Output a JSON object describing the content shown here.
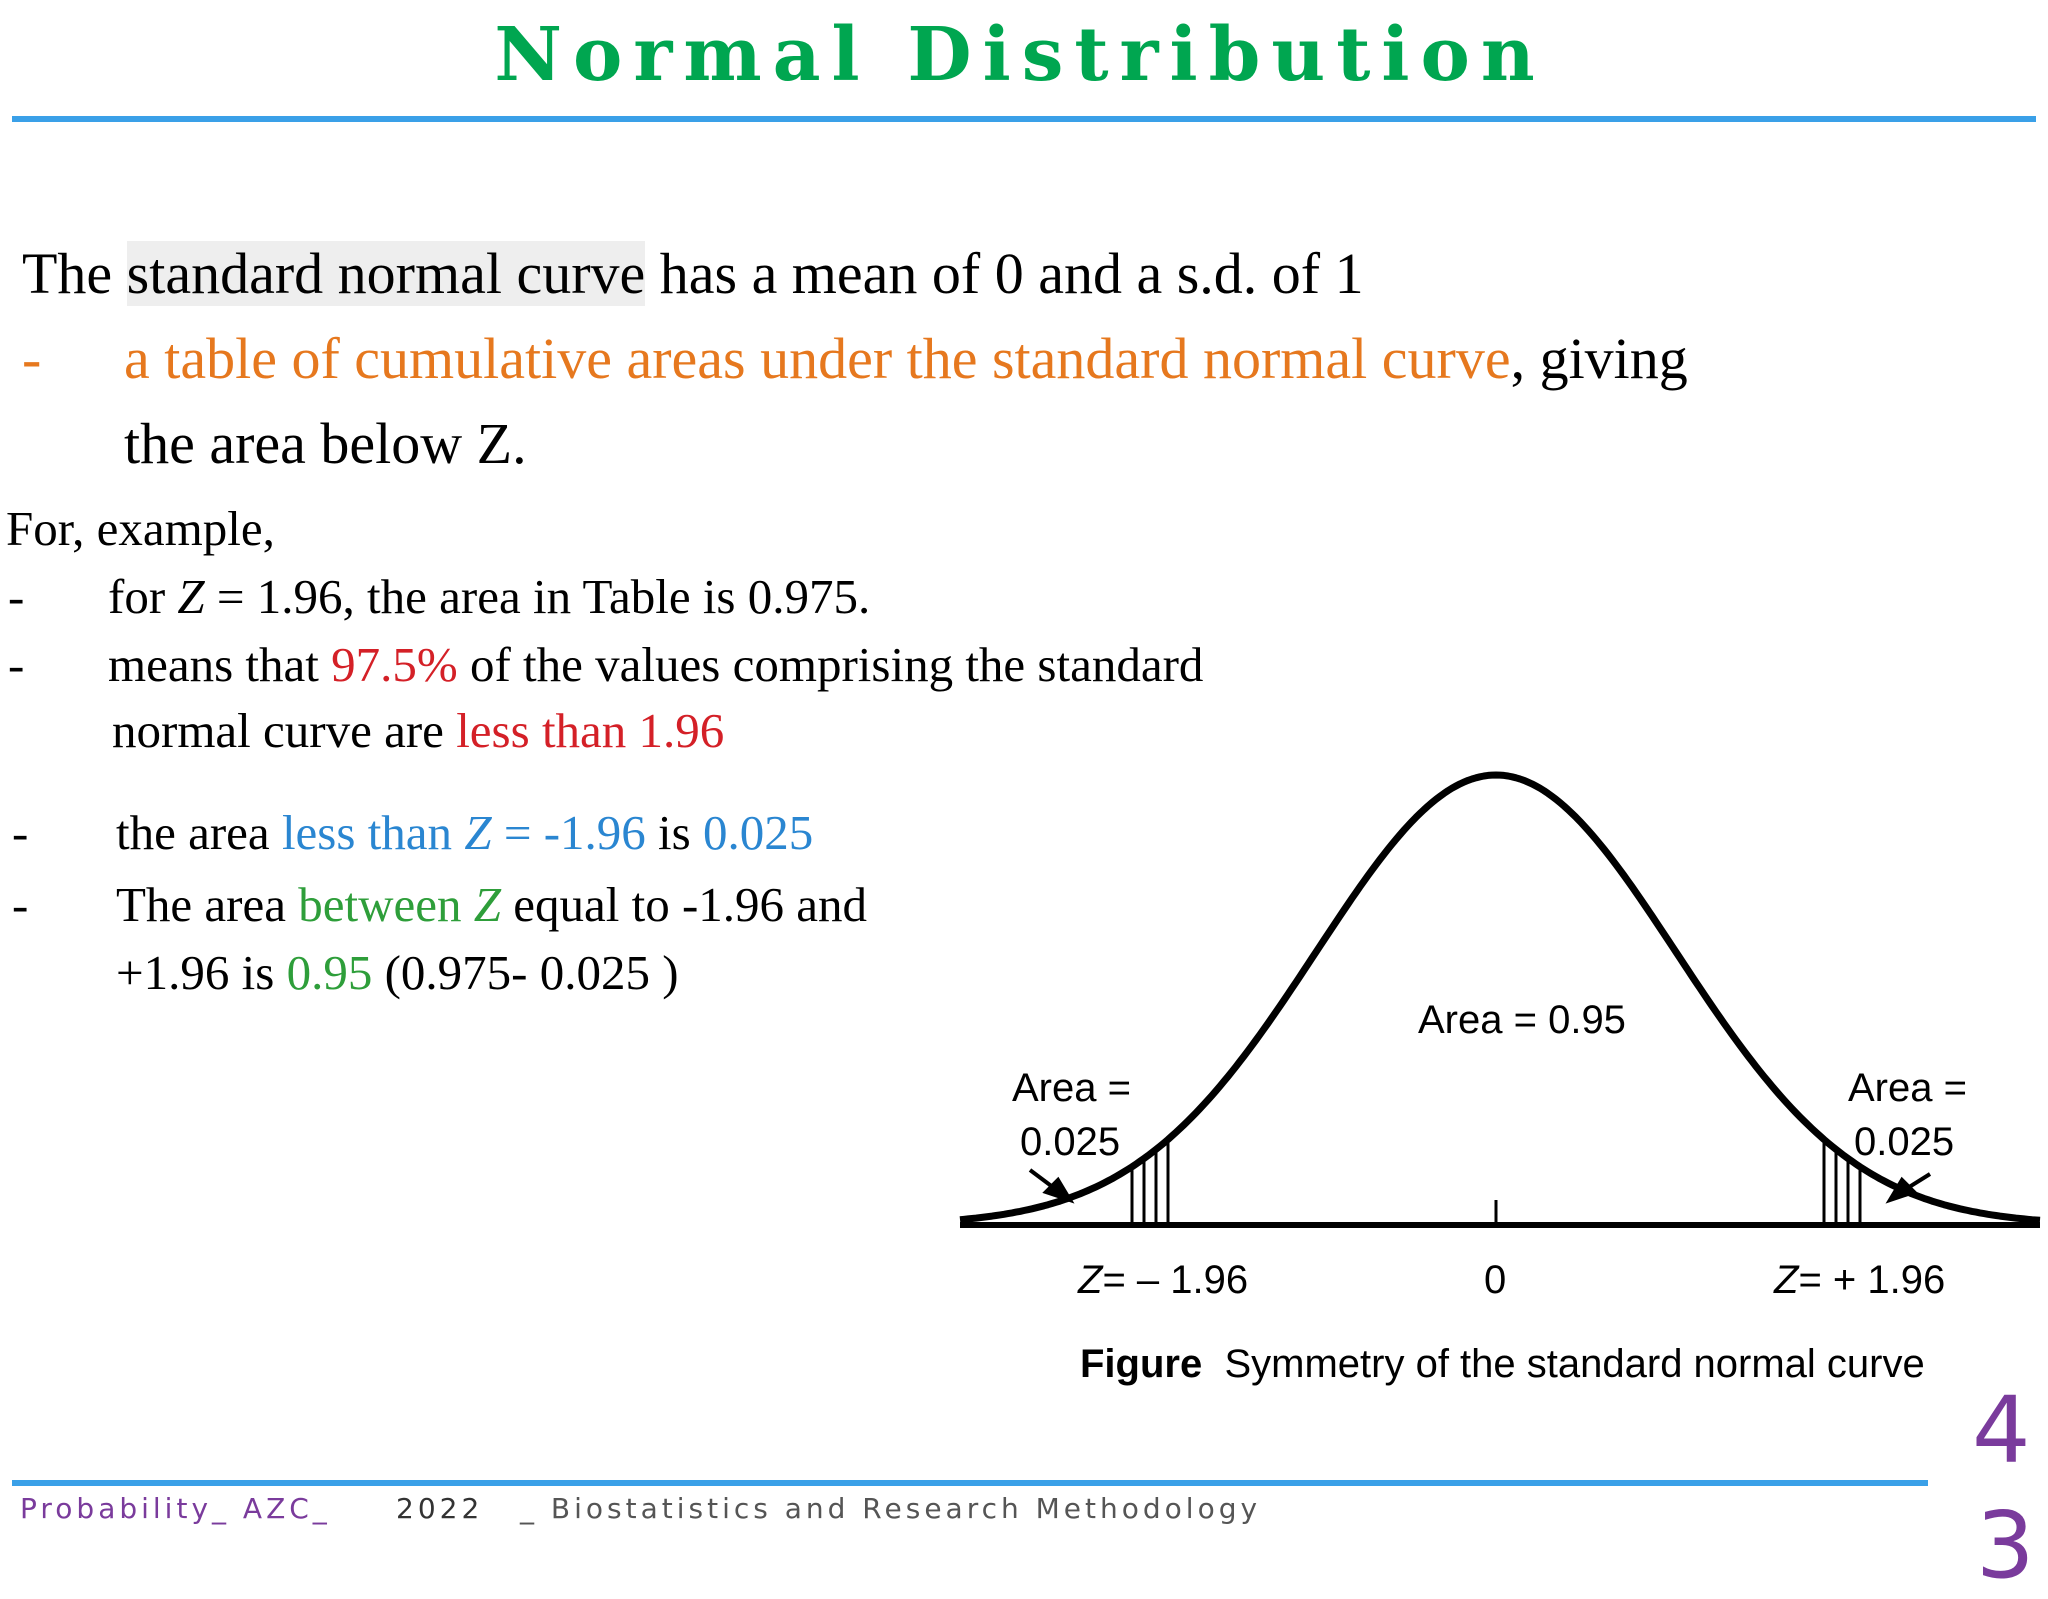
{
  "title": "Normal Distribution",
  "intro": {
    "l1_a": "The ",
    "l1_b": "standard normal curve",
    "l1_c": " has a mean of 0 and a s.d. of 1",
    "dash": "-",
    "l2_a": "a table of cumulative areas under the standard normal curve",
    "l2_b": ", giving",
    "l3": "the area below Z."
  },
  "example": {
    "heading": "For, example,",
    "dash": "-",
    "b1_a": "for ",
    "b1_z": "Z",
    "b1_b": " = 1.96, the area in Table is 0.975.",
    "b2_a": "means that ",
    "b2_pct": "97.5%",
    "b2_b": " of the values comprising the standard",
    "b2_c": "normal curve are ",
    "b2_less": "less than 1.96",
    "b3_a": "the area ",
    "b3_less": "less than ",
    "b3_z": "Z",
    "b3_val": " = -1.96",
    "b3_is": " is ",
    "b3_res": "0.025",
    "b4_a": "The area ",
    "b4_between": "between ",
    "b4_z": "Z",
    "b4_b": " equal to -1.96 and",
    "b4_c": "+1.96 is ",
    "b4_res": "0.95",
    "b4_d": "  (0.975- 0.025 )"
  },
  "figure": {
    "area_center": "Area = 0.95",
    "area_left_1": "Area =",
    "area_left_2": "0.025",
    "area_right_1": "Area =",
    "area_right_2": "0.025",
    "z_left": "= – 1.96",
    "z_center": "0",
    "z_right": "= + 1.96",
    "z_sym": "Z",
    "caption_bold": "Figure",
    "caption_text": "Symmetry of the standard normal curve"
  },
  "footer": {
    "left": "Probability_ AZC_",
    "year": "2022",
    "course": "_ Biostatistics and Research Methodology"
  },
  "page_number": "4",
  "page_number_2": "3",
  "colors": {
    "title": "#00a650",
    "rule": "#3aa0e8",
    "orange": "#e6781e",
    "red": "#d42027",
    "blue": "#2a86d1",
    "green": "#2e9e3a",
    "footer_purple": "#7a3b9c"
  }
}
